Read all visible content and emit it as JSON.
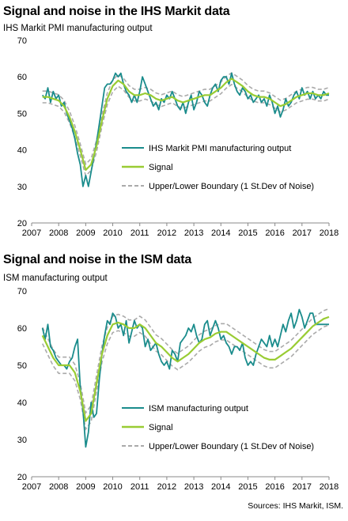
{
  "source": "Sources: IHS Markit, ISM.",
  "chart_data": [
    {
      "type": "line",
      "title": "Signal and noise in the IHS Markit data",
      "subtitle": "IHS Markit  PMI manufacturing output",
      "xlim": [
        2007,
        2018
      ],
      "ylim": [
        20,
        70
      ],
      "xticks": [
        "2007",
        "2008",
        "2009",
        "2010",
        "2011",
        "2012",
        "2013",
        "2014",
        "2015",
        "2016",
        "2017",
        "2018"
      ],
      "yticks": [
        "20",
        "30",
        "40",
        "50",
        "60",
        "70"
      ],
      "grid": false,
      "legend_position": "lower-right",
      "series": [
        {
          "name": "IHS Markit PMI manufacturing output",
          "color": "#1a8c8c",
          "x": [
            2007.4,
            2007.5,
            2007.6,
            2007.7,
            2007.8,
            2007.9,
            2008.0,
            2008.1,
            2008.2,
            2008.3,
            2008.4,
            2008.5,
            2008.6,
            2008.7,
            2008.8,
            2008.9,
            2009.0,
            2009.1,
            2009.2,
            2009.3,
            2009.4,
            2009.5,
            2009.6,
            2009.7,
            2009.8,
            2009.9,
            2010.0,
            2010.1,
            2010.2,
            2010.3,
            2010.4,
            2010.5,
            2010.6,
            2010.7,
            2010.8,
            2010.9,
            2011.0,
            2011.1,
            2011.2,
            2011.3,
            2011.4,
            2011.5,
            2011.6,
            2011.7,
            2011.8,
            2011.9,
            2012.0,
            2012.1,
            2012.2,
            2012.3,
            2012.4,
            2012.5,
            2012.6,
            2012.7,
            2012.8,
            2012.9,
            2013.0,
            2013.1,
            2013.2,
            2013.3,
            2013.4,
            2013.5,
            2013.6,
            2013.7,
            2013.8,
            2013.9,
            2014.0,
            2014.1,
            2014.2,
            2014.3,
            2014.4,
            2014.5,
            2014.6,
            2014.7,
            2014.8,
            2014.9,
            2015.0,
            2015.1,
            2015.2,
            2015.3,
            2015.4,
            2015.5,
            2015.6,
            2015.7,
            2015.8,
            2015.9,
            2016.0,
            2016.1,
            2016.2,
            2016.3,
            2016.4,
            2016.5,
            2016.6,
            2016.7,
            2016.8,
            2016.9,
            2017.0,
            2017.1,
            2017.2,
            2017.3,
            2017.4,
            2017.5,
            2017.6,
            2017.7,
            2017.8,
            2017.9,
            2018.0
          ],
          "y": [
            55,
            54,
            57,
            53,
            56,
            54,
            55,
            52,
            53,
            50,
            48,
            46,
            43,
            39,
            36,
            30,
            33,
            30,
            34,
            38,
            42,
            47,
            52,
            57,
            58,
            58,
            59,
            61,
            60,
            61,
            58,
            56,
            55,
            53,
            55,
            53,
            56,
            60,
            58,
            56,
            54,
            52,
            53,
            51,
            54,
            53,
            55,
            54,
            56,
            54,
            52,
            51,
            53,
            50,
            53,
            55,
            51,
            53,
            56,
            55,
            53,
            52,
            55,
            57,
            58,
            56,
            59,
            60,
            60,
            58,
            61,
            58,
            56,
            55,
            57,
            56,
            54,
            55,
            53,
            54,
            55,
            53,
            54,
            52,
            55,
            53,
            50,
            52,
            49,
            51,
            54,
            52,
            53,
            55,
            56,
            54,
            57,
            55,
            56,
            54,
            56,
            54,
            55,
            54,
            56,
            55,
            55
          ]
        },
        {
          "name": "Signal",
          "color": "#99cc33",
          "x": [
            2007.4,
            2007.6,
            2007.8,
            2008.0,
            2008.2,
            2008.4,
            2008.6,
            2008.8,
            2009.0,
            2009.2,
            2009.4,
            2009.6,
            2009.8,
            2010.0,
            2010.2,
            2010.4,
            2010.6,
            2010.8,
            2011.0,
            2011.2,
            2011.4,
            2011.6,
            2011.8,
            2012.0,
            2012.2,
            2012.4,
            2012.6,
            2012.8,
            2013.0,
            2013.2,
            2013.4,
            2013.6,
            2013.8,
            2014.0,
            2014.2,
            2014.4,
            2014.6,
            2014.8,
            2015.0,
            2015.2,
            2015.4,
            2015.6,
            2015.8,
            2016.0,
            2016.2,
            2016.4,
            2016.6,
            2016.8,
            2017.0,
            2017.2,
            2017.4,
            2017.6,
            2017.8,
            2018.0
          ],
          "y": [
            54.5,
            54.5,
            54,
            53.5,
            52,
            49,
            45,
            40,
            34.5,
            36,
            41,
            48,
            54,
            57.5,
            59,
            58,
            56,
            55,
            55,
            55.5,
            55,
            54,
            53.5,
            54,
            54.5,
            53.5,
            53,
            53.5,
            54,
            54.5,
            55,
            55,
            56,
            57,
            58.5,
            59.5,
            58.5,
            57.5,
            56,
            55,
            54.5,
            54.5,
            54,
            53,
            52,
            52.5,
            53.5,
            54.5,
            55,
            55.5,
            55.5,
            55,
            55,
            55.5
          ]
        },
        {
          "name": "Upper/Lower Boundary (1 St.Dev of Noise)",
          "color": "#aaaaaa",
          "dash": true,
          "offset": 1.6
        }
      ]
    },
    {
      "type": "line",
      "title": "Signal and noise in the ISM data",
      "subtitle": "ISM manufacturing output",
      "xlim": [
        2007,
        2018
      ],
      "ylim": [
        20,
        70
      ],
      "xticks": [
        "2007",
        "2008",
        "2009",
        "2010",
        "2011",
        "2012",
        "2013",
        "2014",
        "2015",
        "2016",
        "2017",
        "2018"
      ],
      "yticks": [
        "20",
        "30",
        "40",
        "50",
        "60",
        "70"
      ],
      "grid": false,
      "legend_position": "lower-right",
      "series": [
        {
          "name": "ISM manufacturing output",
          "color": "#1a8c8c",
          "x": [
            2007.4,
            2007.5,
            2007.6,
            2007.7,
            2007.8,
            2007.9,
            2008.0,
            2008.1,
            2008.2,
            2008.3,
            2008.4,
            2008.5,
            2008.6,
            2008.7,
            2008.8,
            2008.9,
            2009.0,
            2009.1,
            2009.2,
            2009.3,
            2009.4,
            2009.5,
            2009.6,
            2009.7,
            2009.8,
            2009.9,
            2010.0,
            2010.1,
            2010.2,
            2010.3,
            2010.4,
            2010.5,
            2010.6,
            2010.7,
            2010.8,
            2010.9,
            2011.0,
            2011.1,
            2011.2,
            2011.3,
            2011.4,
            2011.5,
            2011.6,
            2011.7,
            2011.8,
            2011.9,
            2012.0,
            2012.1,
            2012.2,
            2012.3,
            2012.4,
            2012.5,
            2012.6,
            2012.7,
            2012.8,
            2012.9,
            2013.0,
            2013.1,
            2013.2,
            2013.3,
            2013.4,
            2013.5,
            2013.6,
            2013.7,
            2013.8,
            2013.9,
            2014.0,
            2014.1,
            2014.2,
            2014.3,
            2014.4,
            2014.5,
            2014.6,
            2014.7,
            2014.8,
            2014.9,
            2015.0,
            2015.1,
            2015.2,
            2015.3,
            2015.4,
            2015.5,
            2015.6,
            2015.7,
            2015.8,
            2015.9,
            2016.0,
            2016.1,
            2016.2,
            2016.3,
            2016.4,
            2016.5,
            2016.6,
            2016.7,
            2016.8,
            2016.9,
            2017.0,
            2017.1,
            2017.2,
            2017.3,
            2017.4,
            2017.5,
            2017.6,
            2017.7,
            2017.8,
            2017.9,
            2018.0
          ],
          "y": [
            60,
            57,
            61,
            55,
            54,
            52,
            51,
            50,
            50,
            49,
            51,
            52,
            55,
            57,
            44,
            38,
            28,
            32,
            40,
            36,
            37,
            46,
            53,
            58,
            62,
            61,
            64,
            63,
            60,
            61,
            58,
            62,
            56,
            59,
            62,
            60,
            61,
            60,
            55,
            57,
            54,
            55,
            56,
            53,
            51,
            50,
            51,
            49,
            54,
            53,
            51,
            56,
            57,
            58,
            60,
            59,
            61,
            58,
            56,
            57,
            61,
            62,
            58,
            60,
            62,
            60,
            57,
            58,
            56,
            55,
            53,
            55,
            55,
            54,
            56,
            52,
            50,
            51,
            50,
            53,
            55,
            57,
            56,
            55,
            58,
            55,
            57,
            55,
            58,
            61,
            59,
            62,
            64,
            60,
            62,
            65,
            63,
            60,
            62,
            64,
            64,
            61,
            61,
            61,
            61,
            61,
            61
          ]
        },
        {
          "name": "Signal",
          "color": "#99cc33",
          "x": [
            2007.4,
            2007.6,
            2007.8,
            2008.0,
            2008.2,
            2008.4,
            2008.6,
            2008.8,
            2009.0,
            2009.2,
            2009.4,
            2009.6,
            2009.8,
            2010.0,
            2010.2,
            2010.4,
            2010.6,
            2010.8,
            2011.0,
            2011.2,
            2011.4,
            2011.6,
            2011.8,
            2012.0,
            2012.2,
            2012.4,
            2012.6,
            2012.8,
            2013.0,
            2013.2,
            2013.4,
            2013.6,
            2013.8,
            2014.0,
            2014.2,
            2014.4,
            2014.6,
            2014.8,
            2015.0,
            2015.2,
            2015.4,
            2015.6,
            2015.8,
            2016.0,
            2016.2,
            2016.4,
            2016.6,
            2016.8,
            2017.0,
            2017.2,
            2017.4,
            2017.6,
            2017.8,
            2018.0
          ],
          "y": [
            58,
            55,
            52,
            50,
            50,
            50,
            48,
            43,
            35,
            37,
            45,
            53,
            58,
            61,
            61.5,
            61,
            60,
            60,
            61,
            60,
            58,
            56,
            55,
            53.5,
            52,
            51,
            52,
            53,
            54.5,
            56,
            57,
            57.5,
            58.5,
            59,
            59,
            58,
            57,
            56,
            55,
            54,
            53,
            52,
            51.5,
            51.5,
            52.5,
            53.5,
            54.5,
            56,
            57.5,
            59,
            60.5,
            61.5,
            62.5,
            63
          ]
        },
        {
          "name": "Upper/Lower Boundary (1 St.Dev of Noise)",
          "color": "#aaaaaa",
          "dash": true,
          "offset": 2.2
        }
      ]
    }
  ]
}
